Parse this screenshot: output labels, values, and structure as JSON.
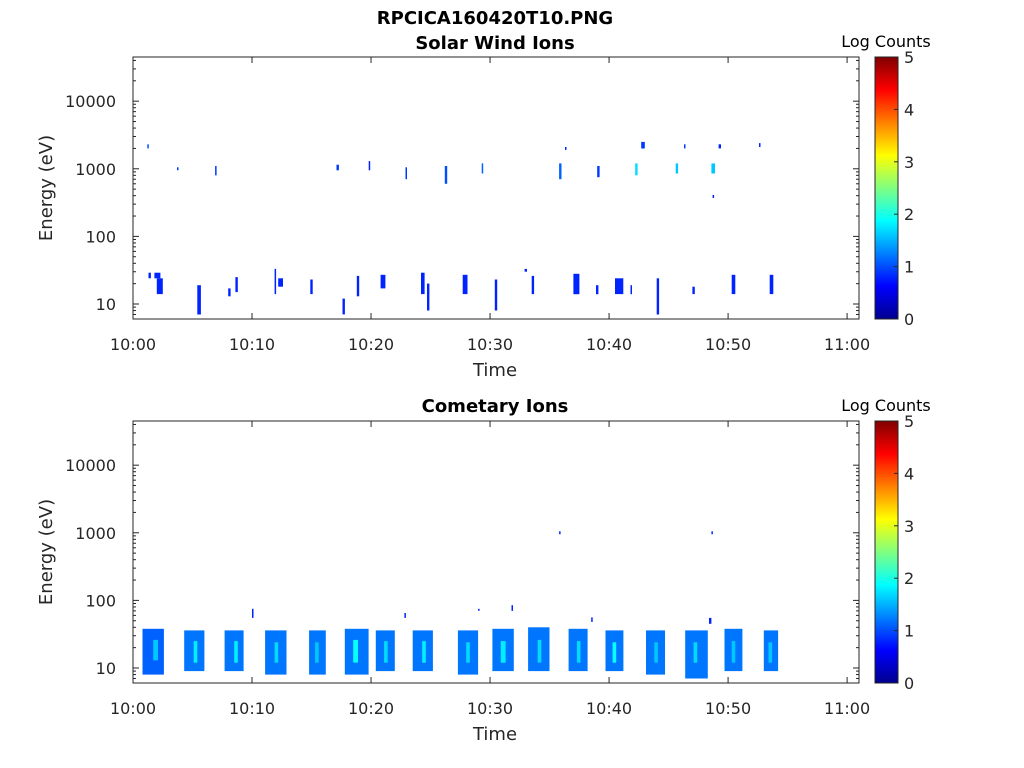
{
  "figure": {
    "title": "RPCICA160420T10.PNG",
    "colormap": [
      "#00008f",
      "#0000ff",
      "#0080ff",
      "#00ffff",
      "#80ff80",
      "#ffff00",
      "#ff8000",
      "#ff0000",
      "#800000"
    ]
  },
  "chart_data": [
    {
      "type": "heatmap",
      "title": "Solar Wind Ions",
      "xlabel": "Time",
      "ylabel": "Energy (eV)",
      "xlim": [
        0,
        61
      ],
      "ylim": [
        6,
        45000
      ],
      "yscale": "log",
      "x_unit": "minutes after 10:00",
      "x_ticks": [
        0,
        10,
        20,
        30,
        40,
        50,
        60
      ],
      "x_tick_labels": [
        "10:00",
        "10:10",
        "10:20",
        "10:30",
        "10:40",
        "10:50",
        "11:00"
      ],
      "y_ticks": [
        10,
        100,
        1000,
        10000
      ],
      "y_tick_labels": [
        "10",
        "100",
        "1000",
        "10000"
      ],
      "colorbar": {
        "label": "Log Counts",
        "range": [
          0,
          5
        ],
        "ticks": [
          0,
          1,
          2,
          3,
          4,
          5
        ],
        "tick_labels": [
          "0",
          "1",
          "2",
          "3",
          "4",
          "5"
        ]
      },
      "cells": [
        [
          1.2,
          1.3,
          2000,
          2300,
          1.0
        ],
        [
          3.7,
          3.8,
          950,
          1050,
          0.9
        ],
        [
          6.9,
          7.0,
          800,
          1100,
          0.9
        ],
        [
          17.1,
          17.3,
          950,
          1150,
          0.9
        ],
        [
          19.8,
          19.9,
          950,
          1300,
          0.8
        ],
        [
          22.9,
          23.0,
          700,
          1050,
          0.9
        ],
        [
          26.2,
          26.4,
          600,
          1100,
          1.0
        ],
        [
          29.3,
          29.4,
          850,
          1200,
          1.1
        ],
        [
          35.8,
          36.0,
          700,
          1200,
          1.1
        ],
        [
          36.3,
          36.4,
          1900,
          2100,
          0.8
        ],
        [
          39.0,
          39.2,
          750,
          1100,
          0.9
        ],
        [
          42.2,
          42.4,
          800,
          1200,
          1.7
        ],
        [
          42.7,
          43.0,
          2000,
          2500,
          0.9
        ],
        [
          45.6,
          45.8,
          850,
          1200,
          1.6
        ],
        [
          46.3,
          46.4,
          2000,
          2300,
          0.9
        ],
        [
          48.6,
          48.9,
          850,
          1200,
          1.6
        ],
        [
          48.7,
          48.8,
          370,
          410,
          0.8
        ],
        [
          49.2,
          49.4,
          2000,
          2300,
          0.8
        ],
        [
          52.6,
          52.7,
          2100,
          2400,
          0.8
        ],
        [
          1.3,
          1.5,
          24,
          29,
          0.8
        ],
        [
          1.8,
          2.3,
          24,
          29,
          0.8
        ],
        [
          2.0,
          2.5,
          14,
          24,
          0.8
        ],
        [
          5.4,
          5.7,
          7,
          19,
          0.8
        ],
        [
          8.0,
          8.2,
          13,
          17,
          0.8
        ],
        [
          8.6,
          8.8,
          15,
          25,
          0.8
        ],
        [
          11.9,
          12.0,
          14,
          33,
          0.8
        ],
        [
          12.2,
          12.6,
          18,
          24,
          0.8
        ],
        [
          14.9,
          15.1,
          14,
          23,
          0.8
        ],
        [
          17.6,
          17.8,
          7,
          12,
          0.8
        ],
        [
          18.8,
          19.0,
          13,
          26,
          0.8
        ],
        [
          20.8,
          21.2,
          17,
          27,
          0.8
        ],
        [
          24.2,
          24.5,
          14,
          29,
          0.8
        ],
        [
          24.7,
          24.9,
          8,
          20,
          0.8
        ],
        [
          27.7,
          28.1,
          14,
          27,
          0.8
        ],
        [
          30.4,
          30.6,
          8,
          23,
          0.8
        ],
        [
          32.9,
          33.1,
          30,
          33,
          0.8
        ],
        [
          33.5,
          33.7,
          14,
          26,
          0.8
        ],
        [
          37.0,
          37.5,
          14,
          28,
          0.8
        ],
        [
          38.9,
          39.1,
          14,
          19,
          0.8
        ],
        [
          40.5,
          41.2,
          14,
          24,
          0.8
        ],
        [
          41.8,
          41.9,
          14,
          19,
          0.8
        ],
        [
          44.0,
          44.2,
          7,
          24,
          0.8
        ],
        [
          47.0,
          47.2,
          14,
          18,
          0.8
        ],
        [
          50.3,
          50.6,
          14,
          27,
          0.8
        ],
        [
          53.5,
          53.8,
          14,
          27,
          0.8
        ]
      ]
    },
    {
      "type": "heatmap",
      "title": "Cometary Ions",
      "xlabel": "Time",
      "ylabel": "Energy (eV)",
      "xlim": [
        0,
        61
      ],
      "ylim": [
        6,
        45000
      ],
      "yscale": "log",
      "x_unit": "minutes after 10:00",
      "x_ticks": [
        0,
        10,
        20,
        30,
        40,
        50,
        60
      ],
      "x_tick_labels": [
        "10:00",
        "10:10",
        "10:20",
        "10:30",
        "10:40",
        "10:50",
        "11:00"
      ],
      "y_ticks": [
        10,
        100,
        1000,
        10000
      ],
      "y_tick_labels": [
        "10",
        "100",
        "1000",
        "10000"
      ],
      "colorbar": {
        "label": "Log Counts",
        "range": [
          0,
          5
        ],
        "ticks": [
          0,
          1,
          2,
          3,
          4,
          5
        ],
        "tick_labels": [
          "0",
          "1",
          "2",
          "3",
          "4",
          "5"
        ]
      },
      "cells": [
        [
          0.8,
          2.6,
          8,
          38,
          1.1
        ],
        [
          1.7,
          2.1,
          13,
          26,
          1.6
        ],
        [
          4.3,
          6.0,
          9,
          36,
          1.2
        ],
        [
          5.1,
          5.4,
          12,
          25,
          1.8
        ],
        [
          7.7,
          9.3,
          9,
          36,
          1.2
        ],
        [
          8.5,
          8.8,
          12,
          25,
          1.8
        ],
        [
          10.0,
          10.1,
          55,
          75,
          0.8
        ],
        [
          11.1,
          12.9,
          8,
          36,
          1.2
        ],
        [
          11.9,
          12.2,
          12,
          24,
          1.7
        ],
        [
          14.8,
          16.2,
          8,
          36,
          1.2
        ],
        [
          15.3,
          15.6,
          12,
          24,
          1.6
        ],
        [
          17.8,
          19.8,
          8,
          38,
          1.2
        ],
        [
          18.5,
          18.9,
          12,
          26,
          1.9
        ],
        [
          20.4,
          22.0,
          9,
          36,
          1.2
        ],
        [
          21.1,
          21.4,
          12,
          25,
          1.7
        ],
        [
          22.8,
          22.9,
          55,
          65,
          0.8
        ],
        [
          23.5,
          25.2,
          9,
          36,
          1.2
        ],
        [
          24.3,
          24.6,
          12,
          25,
          1.8
        ],
        [
          27.3,
          29.0,
          8,
          36,
          1.2
        ],
        [
          28.0,
          28.3,
          12,
          24,
          1.7
        ],
        [
          29.0,
          29.1,
          70,
          75,
          0.8
        ],
        [
          30.2,
          32.0,
          9,
          38,
          1.2
        ],
        [
          30.9,
          31.3,
          12,
          25,
          1.8
        ],
        [
          31.8,
          31.9,
          70,
          85,
          0.8
        ],
        [
          33.2,
          35.0,
          9,
          40,
          1.2
        ],
        [
          34.0,
          34.3,
          12,
          26,
          1.7
        ],
        [
          35.8,
          35.9,
          950,
          1050,
          0.8
        ],
        [
          36.6,
          38.2,
          9,
          38,
          1.2
        ],
        [
          37.3,
          37.6,
          12,
          25,
          1.7
        ],
        [
          38.5,
          38.6,
          48,
          56,
          0.8
        ],
        [
          39.7,
          41.2,
          9,
          36,
          1.2
        ],
        [
          40.3,
          40.6,
          12,
          24,
          1.9
        ],
        [
          43.1,
          44.7,
          8,
          36,
          1.2
        ],
        [
          43.8,
          44.1,
          12,
          24,
          1.6
        ],
        [
          46.4,
          48.3,
          7,
          36,
          1.2
        ],
        [
          47.1,
          47.4,
          12,
          24,
          1.7
        ],
        [
          48.4,
          48.6,
          45,
          55,
          0.8
        ],
        [
          48.6,
          48.7,
          950,
          1050,
          0.8
        ],
        [
          49.7,
          51.2,
          9,
          38,
          1.2
        ],
        [
          50.3,
          50.6,
          12,
          25,
          1.6
        ],
        [
          53.0,
          54.2,
          9,
          36,
          1.2
        ],
        [
          53.4,
          53.7,
          12,
          24,
          1.6
        ]
      ]
    }
  ]
}
